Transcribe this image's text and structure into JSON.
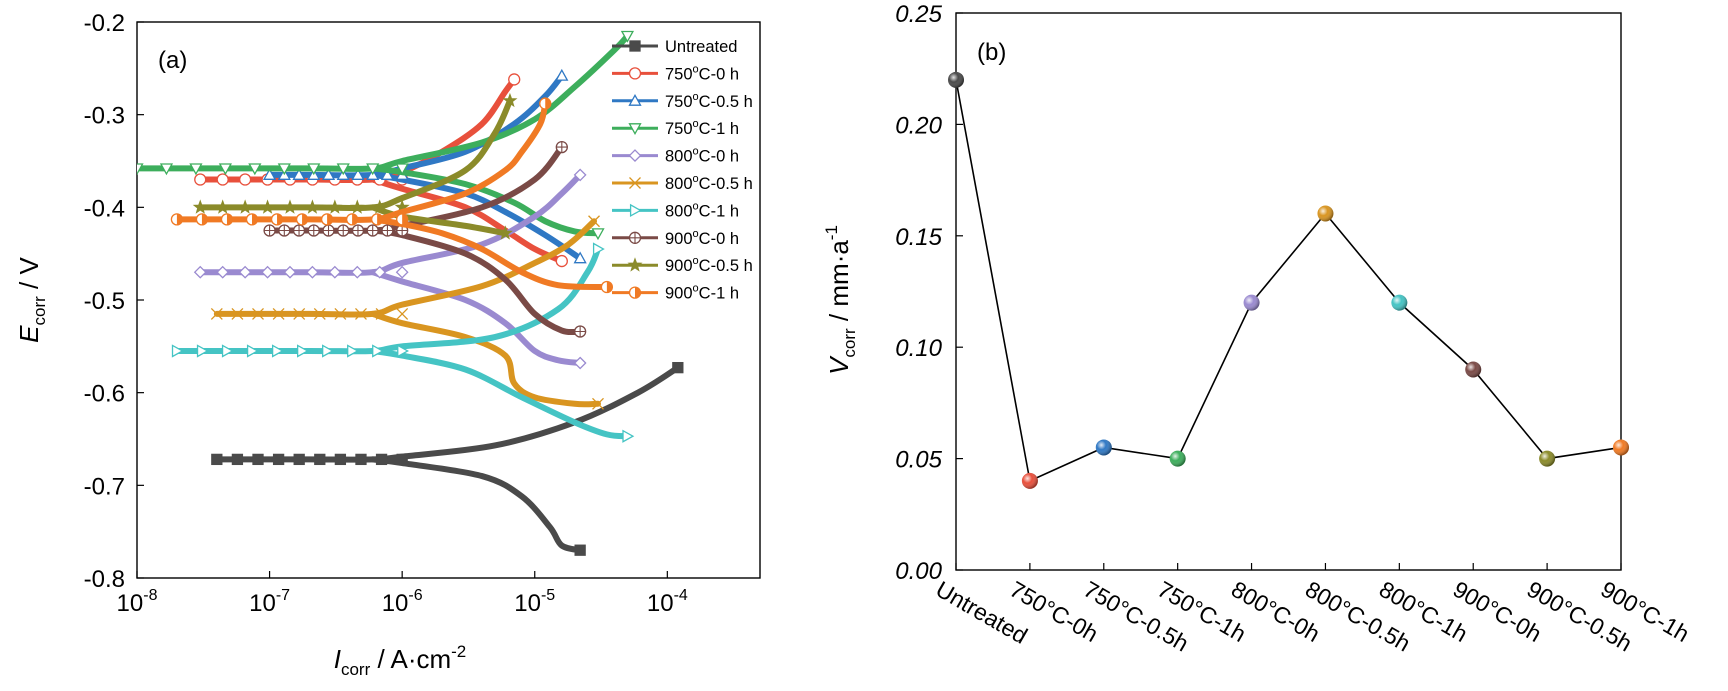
{
  "figure": {
    "panel_a_label": "(a)",
    "panel_b_label": "(b)"
  },
  "chart_data": [
    {
      "type": "line",
      "panel": "a",
      "xlabel": {
        "main": "I",
        "sub": "corr",
        "rest": " / A·cm",
        "sup": "-2"
      },
      "ylabel": {
        "main": "E",
        "sub": "corr",
        "rest": " / V"
      },
      "x_scale": "log",
      "xlim": [
        1e-08,
        0.0005
      ],
      "ylim": [
        -0.8,
        -0.2
      ],
      "x_ticks": [
        1e-08,
        1e-07,
        1e-06,
        1e-05,
        0.0001
      ],
      "x_tick_labels": [
        {
          "base": "10",
          "exp": "-8"
        },
        {
          "base": "10",
          "exp": "-7"
        },
        {
          "base": "10",
          "exp": "-6"
        },
        {
          "base": "10",
          "exp": "-5"
        },
        {
          "base": "10",
          "exp": "-4"
        }
      ],
      "y_ticks": [
        -0.8,
        -0.7,
        -0.6,
        -0.5,
        -0.4,
        -0.3,
        -0.2
      ],
      "y_tick_labels": [
        "-0.8",
        "-0.7",
        "-0.6",
        "-0.5",
        "-0.4",
        "-0.3",
        "-0.2"
      ],
      "legend_position": "top-right",
      "series": [
        {
          "name": "Untreated",
          "label": {
            "pre": "Untreated",
            "sup": "",
            "post": ""
          },
          "color": "#4a4a4a",
          "marker": "filled-square",
          "Ecorr": -0.672,
          "start_i": 4e-08,
          "anodic": [
            [
              1e-06,
              -0.669
            ],
            [
              5e-06,
              -0.657
            ],
            [
              2e-05,
              -0.632
            ],
            [
              6e-05,
              -0.6
            ],
            [
              0.00012,
              -0.573
            ]
          ],
          "cathodic": [
            [
              1e-06,
              -0.676
            ],
            [
              4e-06,
              -0.69
            ],
            [
              8e-06,
              -0.712
            ],
            [
              1.3e-05,
              -0.745
            ],
            [
              1.6e-05,
              -0.765
            ],
            [
              2.2e-05,
              -0.77
            ]
          ]
        },
        {
          "name": "750°C-0 h",
          "label": {
            "pre": "750",
            "sup": "o",
            "post": "C-0 h"
          },
          "color": "#e8503c",
          "marker": "open-circle",
          "Ecorr": -0.37,
          "start_i": 3e-08,
          "anodic": [
            [
              1e-06,
              -0.362
            ],
            [
              2e-06,
              -0.34
            ],
            [
              4e-06,
              -0.31
            ],
            [
              6e-06,
              -0.275
            ],
            [
              7e-06,
              -0.262
            ]
          ],
          "cathodic": [
            [
              1e-06,
              -0.38
            ],
            [
              3e-06,
              -0.4
            ],
            [
              6e-06,
              -0.425
            ],
            [
              1e-05,
              -0.445
            ],
            [
              1.6e-05,
              -0.458
            ]
          ]
        },
        {
          "name": "750°C-0.5 h",
          "label": {
            "pre": "750",
            "sup": "o",
            "post": "C-0.5 h"
          },
          "color": "#2f78c4",
          "marker": "open-triangle-up",
          "Ecorr": -0.365,
          "start_i": 1e-07,
          "anodic": [
            [
              1e-06,
              -0.358
            ],
            [
              3e-06,
              -0.34
            ],
            [
              7e-06,
              -0.31
            ],
            [
              1.2e-05,
              -0.28
            ],
            [
              1.6e-05,
              -0.258
            ]
          ],
          "cathodic": [
            [
              1e-06,
              -0.37
            ],
            [
              3e-06,
              -0.385
            ],
            [
              6e-06,
              -0.405
            ],
            [
              1.2e-05,
              -0.43
            ],
            [
              2.2e-05,
              -0.455
            ]
          ]
        },
        {
          "name": "750°C-1 h",
          "label": {
            "pre": "750",
            "sup": "o",
            "post": "C-1 h"
          },
          "color": "#3dae5c",
          "marker": "open-triangle-down",
          "Ecorr": -0.358,
          "start_i": 1e-08,
          "anodic": [
            [
              1e-06,
              -0.35
            ],
            [
              4e-06,
              -0.33
            ],
            [
              1e-05,
              -0.305
            ],
            [
              2e-05,
              -0.27
            ],
            [
              4e-05,
              -0.23
            ],
            [
              5e-05,
              -0.215
            ]
          ],
          "cathodic": [
            [
              1e-06,
              -0.362
            ],
            [
              3e-06,
              -0.375
            ],
            [
              7e-06,
              -0.395
            ],
            [
              1.2e-05,
              -0.415
            ],
            [
              2e-05,
              -0.426
            ],
            [
              3e-05,
              -0.428
            ]
          ]
        },
        {
          "name": "800°C-0 h",
          "label": {
            "pre": "800",
            "sup": "o",
            "post": "C-0 h"
          },
          "color": "#9a8ad0",
          "marker": "open-diamond",
          "Ecorr": -0.47,
          "start_i": 3e-08,
          "anodic": [
            [
              1e-06,
              -0.46
            ],
            [
              4e-06,
              -0.44
            ],
            [
              1e-05,
              -0.41
            ],
            [
              1.6e-05,
              -0.385
            ],
            [
              2.2e-05,
              -0.365
            ]
          ],
          "cathodic": [
            [
              1e-06,
              -0.48
            ],
            [
              3e-06,
              -0.5
            ],
            [
              6e-06,
              -0.525
            ],
            [
              1e-05,
              -0.555
            ],
            [
              1.5e-05,
              -0.565
            ],
            [
              2.2e-05,
              -0.568
            ]
          ]
        },
        {
          "name": "800°C-0.5 h",
          "label": {
            "pre": "800",
            "sup": "o",
            "post": "C-0.5 h"
          },
          "color": "#d99520",
          "marker": "x-cross",
          "Ecorr": -0.515,
          "start_i": 4e-08,
          "anodic": [
            [
              1e-06,
              -0.505
            ],
            [
              4e-06,
              -0.485
            ],
            [
              1e-05,
              -0.46
            ],
            [
              1.8e-05,
              -0.44
            ],
            [
              2.8e-05,
              -0.415
            ]
          ],
          "cathodic": [
            [
              1e-06,
              -0.525
            ],
            [
              3e-06,
              -0.54
            ],
            [
              6e-06,
              -0.56
            ],
            [
              7e-06,
              -0.59
            ],
            [
              1e-05,
              -0.605
            ],
            [
              2e-05,
              -0.612
            ],
            [
              3e-05,
              -0.612
            ]
          ]
        },
        {
          "name": "800°C-1 h",
          "label": {
            "pre": "800",
            "sup": "o",
            "post": "C-1 h"
          },
          "color": "#45c4c4",
          "marker": "open-triangle-right",
          "Ecorr": -0.555,
          "start_i": 2e-08,
          "anodic": [
            [
              1e-06,
              -0.55
            ],
            [
              5e-06,
              -0.54
            ],
            [
              1.5e-05,
              -0.51
            ],
            [
              2.5e-05,
              -0.47
            ],
            [
              3e-05,
              -0.445
            ]
          ],
          "cathodic": [
            [
              1e-06,
              -0.56
            ],
            [
              3e-06,
              -0.575
            ],
            [
              8e-06,
              -0.605
            ],
            [
              2e-05,
              -0.632
            ],
            [
              3.5e-05,
              -0.645
            ],
            [
              5e-05,
              -0.647
            ]
          ]
        },
        {
          "name": "900°C-0 h",
          "label": {
            "pre": "900",
            "sup": "o",
            "post": "C-0 h"
          },
          "color": "#7a4a46",
          "marker": "circle-plus",
          "Ecorr": -0.425,
          "start_i": 1e-07,
          "anodic": [
            [
              1e-06,
              -0.42
            ],
            [
              4e-06,
              -0.4
            ],
            [
              1e-05,
              -0.37
            ],
            [
              1.6e-05,
              -0.335
            ]
          ],
          "cathodic": [
            [
              1e-06,
              -0.43
            ],
            [
              3e-06,
              -0.45
            ],
            [
              6e-06,
              -0.478
            ],
            [
              1e-05,
              -0.515
            ],
            [
              1.6e-05,
              -0.533
            ],
            [
              2.2e-05,
              -0.534
            ]
          ]
        },
        {
          "name": "900°C-0.5 h",
          "label": {
            "pre": "900",
            "sup": "o",
            "post": "C-0.5 h"
          },
          "color": "#8b8b2a",
          "marker": "star",
          "Ecorr": -0.4,
          "start_i": 3e-08,
          "anodic": [
            [
              1e-06,
              -0.39
            ],
            [
              3e-06,
              -0.36
            ],
            [
              5e-06,
              -0.32
            ],
            [
              6.5e-06,
              -0.285
            ]
          ],
          "cathodic": [
            [
              1e-06,
              -0.41
            ],
            [
              3e-06,
              -0.42
            ],
            [
              6e-06,
              -0.428
            ]
          ]
        },
        {
          "name": "900°C-1 h",
          "label": {
            "pre": "900",
            "sup": "o",
            "post": "C-1 h"
          },
          "color": "#f07a24",
          "marker": "half-circle",
          "Ecorr": -0.413,
          "start_i": 2e-08,
          "anodic": [
            [
              1e-06,
              -0.405
            ],
            [
              3e-06,
              -0.385
            ],
            [
              6e-06,
              -0.36
            ],
            [
              8e-06,
              -0.34
            ],
            [
              1.1e-05,
              -0.31
            ],
            [
              1.2e-05,
              -0.288
            ]
          ],
          "cathodic": [
            [
              1e-06,
              -0.418
            ],
            [
              2e-06,
              -0.428
            ],
            [
              4e-06,
              -0.445
            ],
            [
              8e-06,
              -0.47
            ],
            [
              1.5e-05,
              -0.484
            ],
            [
              3.5e-05,
              -0.486
            ]
          ]
        }
      ]
    },
    {
      "type": "line",
      "panel": "b",
      "ylabel": {
        "main": "V",
        "sub": "corr",
        "rest": " / mm·a",
        "sup": "-1"
      },
      "ylim": [
        0.0,
        0.25
      ],
      "y_ticks": [
        0.0,
        0.05,
        0.1,
        0.15,
        0.2,
        0.25
      ],
      "y_tick_labels": [
        "0.00",
        "0.05",
        "0.10",
        "0.15",
        "0.20",
        "0.25"
      ],
      "categories": [
        "Untreated",
        "750°C-0h",
        "750°C-0.5h",
        "750°C-1h",
        "800°C-0h",
        "800°C-0.5h",
        "800°C-1h",
        "900°C-0h",
        "900°C-0.5h",
        "900°C-1h"
      ],
      "values": [
        0.22,
        0.04,
        0.055,
        0.05,
        0.12,
        0.16,
        0.12,
        0.09,
        0.05,
        0.055
      ],
      "point_colors": [
        "#4a4a4a",
        "#e8503c",
        "#2f78c4",
        "#3dae5c",
        "#9a8ad0",
        "#d99520",
        "#45c4c4",
        "#7a4a46",
        "#8b8b2a",
        "#f07a24"
      ],
      "line_color": "#000000"
    }
  ]
}
